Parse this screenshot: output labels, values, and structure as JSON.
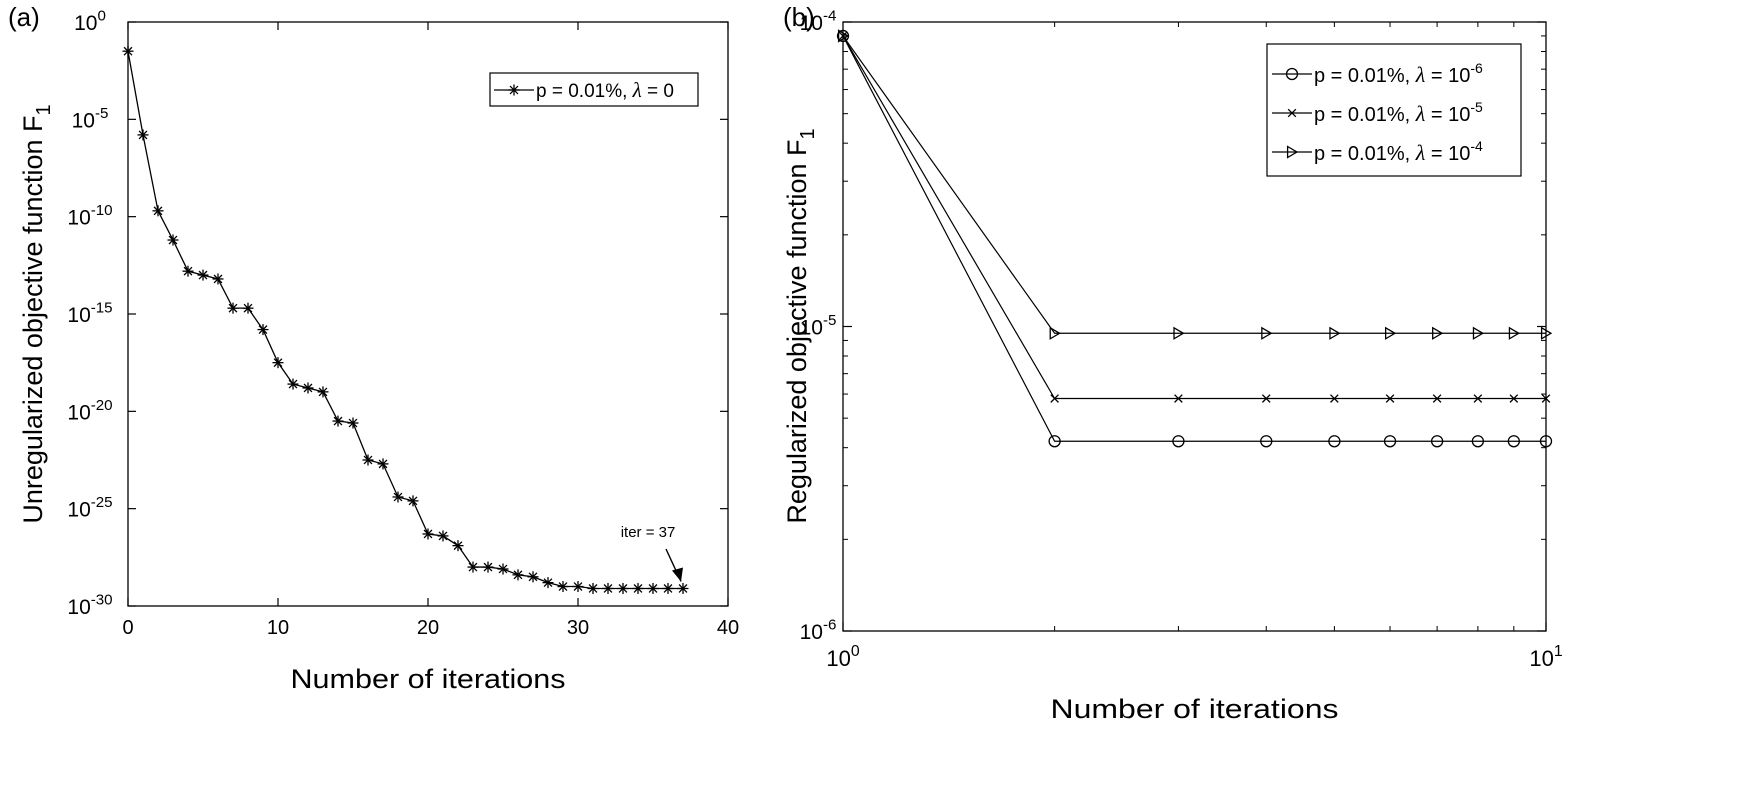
{
  "chart_data": [
    {
      "panel_label": "(a)",
      "type": "line",
      "title": "",
      "xlabel": "Number of iterations",
      "ylabel": "Unregularized objective function F",
      "ylabel_subscript": "1",
      "xscale": "linear",
      "yscale": "log",
      "xlim": [
        0,
        40
      ],
      "ylim_exponent": [
        -30,
        0
      ],
      "grid": false,
      "legend_position": "top-right",
      "x_ticks": [
        "0",
        "10",
        "20",
        "30",
        "40"
      ],
      "y_ticks": [
        {
          "base": "10",
          "exp": "0"
        },
        {
          "base": "10",
          "exp": "-5"
        },
        {
          "base": "10",
          "exp": "-10"
        },
        {
          "base": "10",
          "exp": "-15"
        },
        {
          "base": "10",
          "exp": "-20"
        },
        {
          "base": "10",
          "exp": "-25"
        },
        {
          "base": "10",
          "exp": "-30"
        }
      ],
      "series": [
        {
          "legend_text": "p = 0.01%, ",
          "legend_lambda": "λ",
          "legend_suffix": " = 0",
          "marker": "asterisk",
          "x": [
            0,
            1,
            2,
            3,
            4,
            5,
            6,
            7,
            8,
            9,
            10,
            11,
            12,
            13,
            14,
            15,
            16,
            17,
            18,
            19,
            20,
            21,
            22,
            23,
            24,
            25,
            26,
            27,
            28,
            29,
            30,
            31,
            32,
            33,
            34,
            35,
            36,
            37
          ],
          "log10_y": [
            -1.5,
            -5.8,
            -9.7,
            -11.2,
            -12.8,
            -13.0,
            -13.2,
            -14.7,
            -14.7,
            -15.8,
            -17.5,
            -18.6,
            -18.8,
            -19.0,
            -20.5,
            -20.6,
            -22.5,
            -22.7,
            -24.4,
            -24.6,
            -26.3,
            -26.4,
            -26.9,
            -28.0,
            -28.0,
            -28.1,
            -28.4,
            -28.5,
            -28.8,
            -29.0,
            -29.0,
            -29.1,
            -29.1,
            -29.1,
            -29.1,
            -29.1,
            -29.1,
            -29.1
          ]
        }
      ],
      "annotations": [
        {
          "text": "iter = 37",
          "points_to_x": 37
        }
      ]
    },
    {
      "panel_label": "(b)",
      "type": "line",
      "title": "",
      "xlabel": "Number of iterations",
      "ylabel": "Regularized objective function F",
      "ylabel_subscript": "1",
      "xscale": "log",
      "yscale": "log",
      "xlim": [
        1,
        10
      ],
      "ylim": [
        1e-06,
        0.0001
      ],
      "grid": false,
      "legend_position": "top-right",
      "x_ticks": [
        {
          "base": "10",
          "exp": "0"
        },
        {
          "base": "10",
          "exp": "1"
        }
      ],
      "y_ticks": [
        {
          "base": "10",
          "exp": "-4"
        },
        {
          "base": "10",
          "exp": "-5"
        },
        {
          "base": "10",
          "exp": "-6"
        }
      ],
      "series": [
        {
          "legend_text": "p = 0.01%, ",
          "legend_lambda": "λ",
          "legend_suffix": " = 10",
          "legend_exp": "-6",
          "marker": "circle",
          "x": [
            1,
            2,
            3,
            4,
            5,
            6,
            7,
            8,
            9,
            10
          ],
          "y": [
            9e-05,
            4.2e-06,
            4.2e-06,
            4.2e-06,
            4.2e-06,
            4.2e-06,
            4.2e-06,
            4.2e-06,
            4.2e-06,
            4.2e-06
          ]
        },
        {
          "legend_text": "p = 0.01%, ",
          "legend_lambda": "λ",
          "legend_suffix": " = 10",
          "legend_exp": "-5",
          "marker": "x",
          "x": [
            1,
            2,
            3,
            4,
            5,
            6,
            7,
            8,
            9,
            10
          ],
          "y": [
            9e-05,
            5.8e-06,
            5.8e-06,
            5.8e-06,
            5.8e-06,
            5.8e-06,
            5.8e-06,
            5.8e-06,
            5.8e-06,
            5.8e-06
          ]
        },
        {
          "legend_text": "p = 0.01%, ",
          "legend_lambda": "λ",
          "legend_suffix": " = 10",
          "legend_exp": "-4",
          "marker": "triangle-right",
          "x": [
            1,
            2,
            3,
            4,
            5,
            6,
            7,
            8,
            9,
            10
          ],
          "y": [
            9e-05,
            9.5e-06,
            9.5e-06,
            9.5e-06,
            9.5e-06,
            9.5e-06,
            9.5e-06,
            9.5e-06,
            9.5e-06,
            9.5e-06
          ]
        }
      ]
    }
  ]
}
